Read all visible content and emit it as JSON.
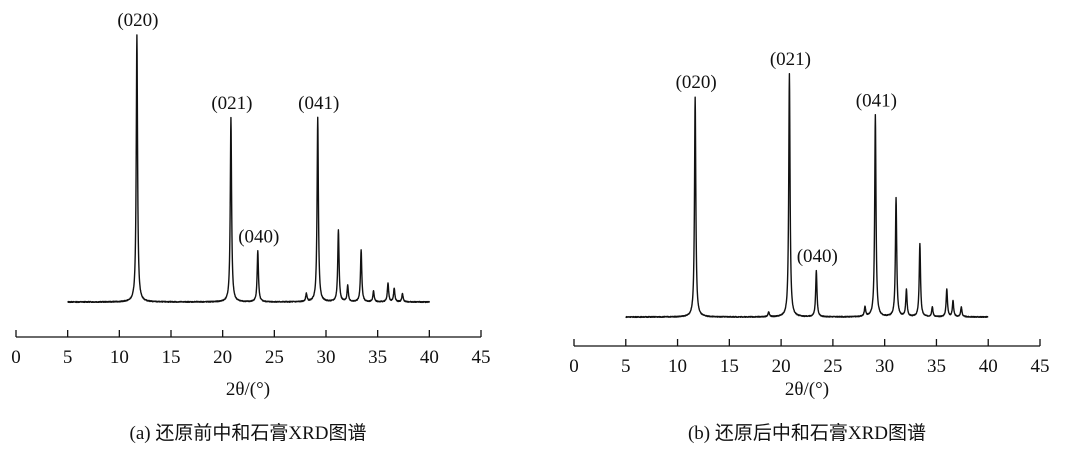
{
  "chart_data": [
    {
      "type": "line",
      "caption": "(a) 还原前中和石膏XRD图谱",
      "xlabel": "2θ/(°)",
      "ylabel": "",
      "xlim": [
        0,
        45
      ],
      "xticks": [
        0,
        5,
        10,
        15,
        20,
        25,
        30,
        35,
        40,
        45
      ],
      "data_range": [
        5,
        40
      ],
      "grid": false,
      "y_axis_shown": false,
      "peaks": [
        {
          "x": 11.7,
          "intensity": 100,
          "label": "(020)"
        },
        {
          "x": 20.8,
          "intensity": 69,
          "label": "(021)"
        },
        {
          "x": 23.4,
          "intensity": 19,
          "label": "(040)"
        },
        {
          "x": 28.1,
          "intensity": 3
        },
        {
          "x": 29.2,
          "intensity": 69,
          "label": "(041)"
        },
        {
          "x": 31.2,
          "intensity": 27
        },
        {
          "x": 32.1,
          "intensity": 6
        },
        {
          "x": 33.4,
          "intensity": 19.5
        },
        {
          "x": 34.6,
          "intensity": 4
        },
        {
          "x": 36.0,
          "intensity": 7
        },
        {
          "x": 36.6,
          "intensity": 5
        },
        {
          "x": 37.4,
          "intensity": 3
        }
      ]
    },
    {
      "type": "line",
      "caption": "(b) 还原后中和石膏XRD图谱",
      "xlabel": "2θ/(°)",
      "ylabel": "",
      "xlim": [
        0,
        45
      ],
      "xticks": [
        0,
        5,
        10,
        15,
        20,
        25,
        30,
        35,
        40,
        45
      ],
      "data_range": [
        5,
        40
      ],
      "grid": false,
      "y_axis_shown": false,
      "peaks": [
        {
          "x": 11.7,
          "intensity": 90.5,
          "label": "(020)"
        },
        {
          "x": 18.8,
          "intensity": 2
        },
        {
          "x": 20.8,
          "intensity": 100,
          "label": "(021)"
        },
        {
          "x": 23.4,
          "intensity": 19,
          "label": "(040)"
        },
        {
          "x": 28.1,
          "intensity": 4
        },
        {
          "x": 29.1,
          "intensity": 83,
          "label": "(041)"
        },
        {
          "x": 31.1,
          "intensity": 49
        },
        {
          "x": 32.1,
          "intensity": 11
        },
        {
          "x": 33.4,
          "intensity": 30
        },
        {
          "x": 34.6,
          "intensity": 4
        },
        {
          "x": 36.0,
          "intensity": 11.5
        },
        {
          "x": 36.6,
          "intensity": 6.5
        },
        {
          "x": 37.4,
          "intensity": 4
        }
      ]
    }
  ]
}
